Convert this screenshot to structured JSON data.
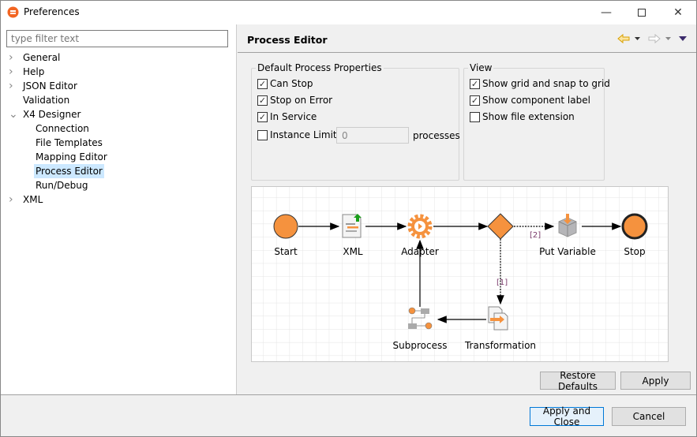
{
  "window": {
    "title": "Preferences",
    "minimize_icon": "minimize-icon",
    "maximize_icon": "maximize-icon",
    "close_icon": "close-icon"
  },
  "filter": {
    "placeholder": "type filter text",
    "value": ""
  },
  "tree": [
    {
      "label": "General",
      "expandable": true,
      "expanded": false
    },
    {
      "label": "Help",
      "expandable": true,
      "expanded": false
    },
    {
      "label": "JSON Editor",
      "expandable": true,
      "expanded": false
    },
    {
      "label": "Validation",
      "expandable": false
    },
    {
      "label": "X4 Designer",
      "expandable": true,
      "expanded": true
    },
    {
      "label": "Connection",
      "child": true
    },
    {
      "label": "File Templates",
      "child": true
    },
    {
      "label": "Mapping Editor",
      "child": true
    },
    {
      "label": "Process Editor",
      "child": true,
      "selected": true
    },
    {
      "label": "Run/Debug",
      "child": true
    },
    {
      "label": "XML",
      "expandable": true,
      "expanded": false
    }
  ],
  "page": {
    "title": "Process Editor"
  },
  "defaults": {
    "title": "Default Process Properties",
    "can_stop": "Can Stop",
    "stop_on_error": "Stop on Error",
    "in_service": "In Service",
    "instance_limit": "Instance Limit",
    "instance_limit_value": "0",
    "processes": "processes",
    "checked": {
      "can_stop": true,
      "stop_on_error": true,
      "in_service": true,
      "instance_limit": false
    }
  },
  "view": {
    "title": "View",
    "show_grid": "Show grid and snap to grid",
    "show_label": "Show component label",
    "show_ext": "Show file extension",
    "checked": {
      "show_grid": true,
      "show_label": true,
      "show_ext": false
    }
  },
  "diagram": {
    "nodes": {
      "start": "Start",
      "xml": "XML",
      "adapter": "Adapter",
      "put_variable": "Put Variable",
      "stop": "Stop",
      "subprocess": "Subprocess",
      "transformation": "Transformation"
    },
    "edge_labels": {
      "branch1": "[1]",
      "branch2": "[2]"
    },
    "accent": "#f5923e"
  },
  "buttons": {
    "restore_defaults": "Restore Defaults",
    "apply": "Apply",
    "apply_close": "Apply and Close",
    "cancel": "Cancel"
  }
}
